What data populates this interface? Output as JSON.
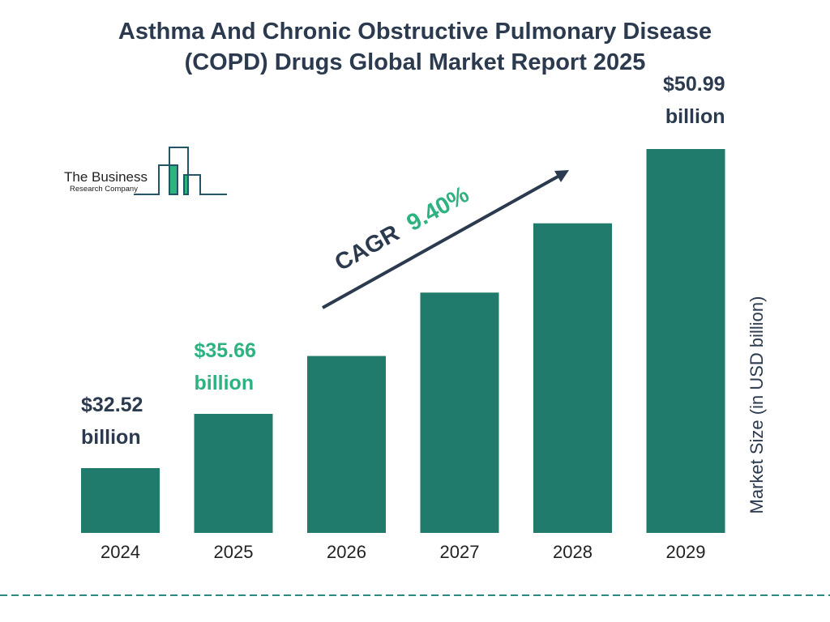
{
  "title_line1": "Asthma And Chronic Obstructive Pulmonary Disease",
  "title_line2": "(COPD) Drugs Global Market Report 2025",
  "logo": {
    "line1": "The Business",
    "line2": "Research Company"
  },
  "colors": {
    "bar": "#207b6c",
    "title": "#2b3a4e",
    "highlight": "#2db37f",
    "dash": "#2e8b82"
  },
  "chart_data": {
    "type": "bar",
    "categories": [
      "2024",
      "2025",
      "2026",
      "2027",
      "2028",
      "2029"
    ],
    "values": [
      32.52,
      35.66,
      39.01,
      42.68,
      46.69,
      50.99
    ],
    "ylabel": "Market Size (in USD billion)",
    "data_labels": [
      {
        "category": "2024",
        "line1": "$32.52",
        "line2": "billion",
        "color": "#2b3a4e"
      },
      {
        "category": "2025",
        "line1": "$35.66",
        "line2": "billion",
        "color": "#2db37f"
      },
      {
        "category": "2029",
        "line1": "$50.99",
        "line2": "billion",
        "color": "#2b3a4e"
      }
    ],
    "annotation": {
      "prefix": "CAGR",
      "value": "9.40%"
    },
    "grid": false
  }
}
